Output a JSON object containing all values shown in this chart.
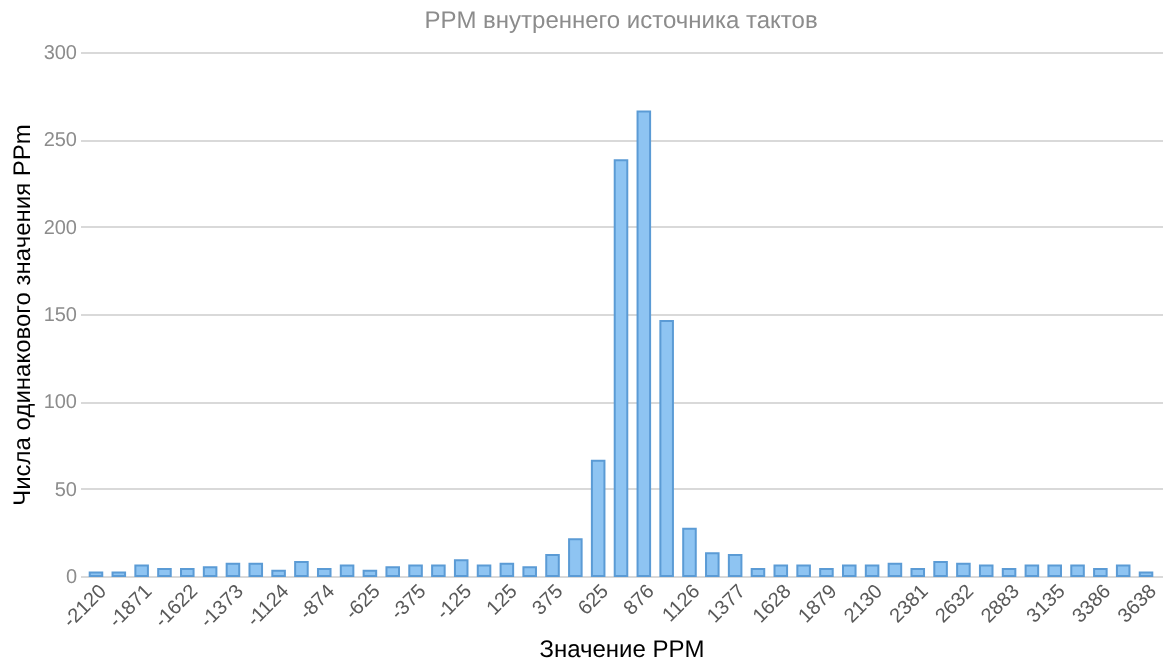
{
  "chart_data": {
    "type": "bar",
    "title": "PPM внутреннего источника тактов",
    "xlabel": "Значение PPM",
    "ylabel": "Числа одинакового значения PPm",
    "categories": [
      "-2120",
      null,
      "-1871",
      null,
      "-1622",
      null,
      "-1373",
      null,
      "-1124",
      null,
      "-874",
      null,
      "-625",
      null,
      "-375",
      null,
      "-125",
      null,
      "125",
      null,
      "375",
      null,
      "625",
      null,
      "876",
      null,
      "1126",
      null,
      "1377",
      null,
      "1628",
      null,
      "1879",
      null,
      "2130",
      null,
      "2381",
      null,
      "2632",
      null,
      "2883",
      null,
      "3135",
      null,
      "3386",
      null,
      "3638"
    ],
    "values": [
      2,
      2,
      6,
      4,
      4,
      5,
      7,
      7,
      3,
      8,
      4,
      6,
      3,
      5,
      6,
      6,
      9,
      6,
      7,
      5,
      12,
      21,
      66,
      238,
      266,
      146,
      27,
      13,
      12,
      4,
      6,
      6,
      4,
      6,
      6,
      7,
      4,
      8,
      7,
      6,
      4,
      6,
      6,
      6,
      4,
      6,
      2
    ],
    "color": "#8ec4f2",
    "ylim": [
      0,
      300
    ],
    "yticks": [
      0,
      50,
      100,
      150,
      200,
      250,
      300
    ],
    "grid": "y"
  }
}
